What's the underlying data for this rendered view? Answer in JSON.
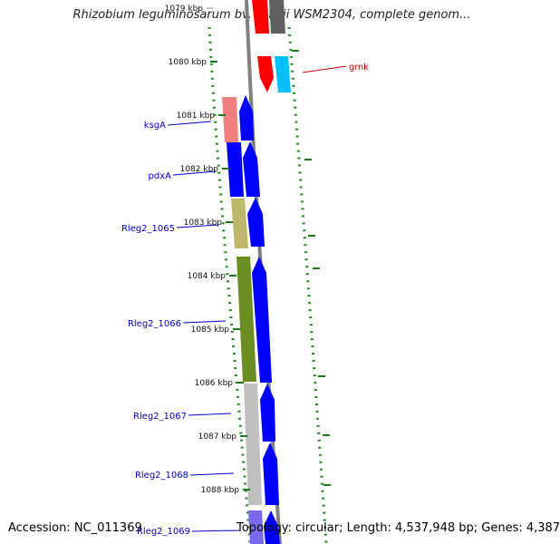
{
  "title": "Rhizobium leguminosarum bv. trifolii WSM2304, complete genom...",
  "footer": {
    "accession": "Accession: NC_011369",
    "topology": "Topology: circular; Length: 4,537,948 bp; Genes: 4,387"
  },
  "ticks": [
    "1079 kbp",
    "1080 kbp",
    "1081 kbp",
    "1082 kbp",
    "1083 kbp",
    "1084 kbp",
    "1085 kbp",
    "1086 kbp",
    "1087 kbp",
    "1088 kbp"
  ],
  "genes": [
    {
      "name": "gmk",
      "color": "#cc0000"
    },
    {
      "name": "ksgA",
      "color": "#0000cc"
    },
    {
      "name": "pdxA",
      "color": "#0000cc"
    },
    {
      "name": "Rleg2_1065",
      "color": "#0000cc"
    },
    {
      "name": "Rleg2_1066",
      "color": "#0000cc"
    },
    {
      "name": "Rleg2_1067",
      "color": "#0000cc"
    },
    {
      "name": "Rleg2_1068",
      "color": "#0000cc"
    },
    {
      "name": "Rleg2_1069",
      "color": "#0000cc"
    }
  ],
  "colors": {
    "backbone": "#808080",
    "gc_dots": "#228b22",
    "tick_marks": "#1a7a1a",
    "red_gene": "#ff0000",
    "cyan_gene": "#00bfff",
    "pink_gene": "#f08080",
    "blue_gene": "#0000ff",
    "tan_gene": "#bdb76b",
    "olive_gene": "#6b8e23",
    "grey_gene": "#c0c0c0",
    "dark_grey_gene": "#606060",
    "lavender_gene": "#7b68ee"
  }
}
